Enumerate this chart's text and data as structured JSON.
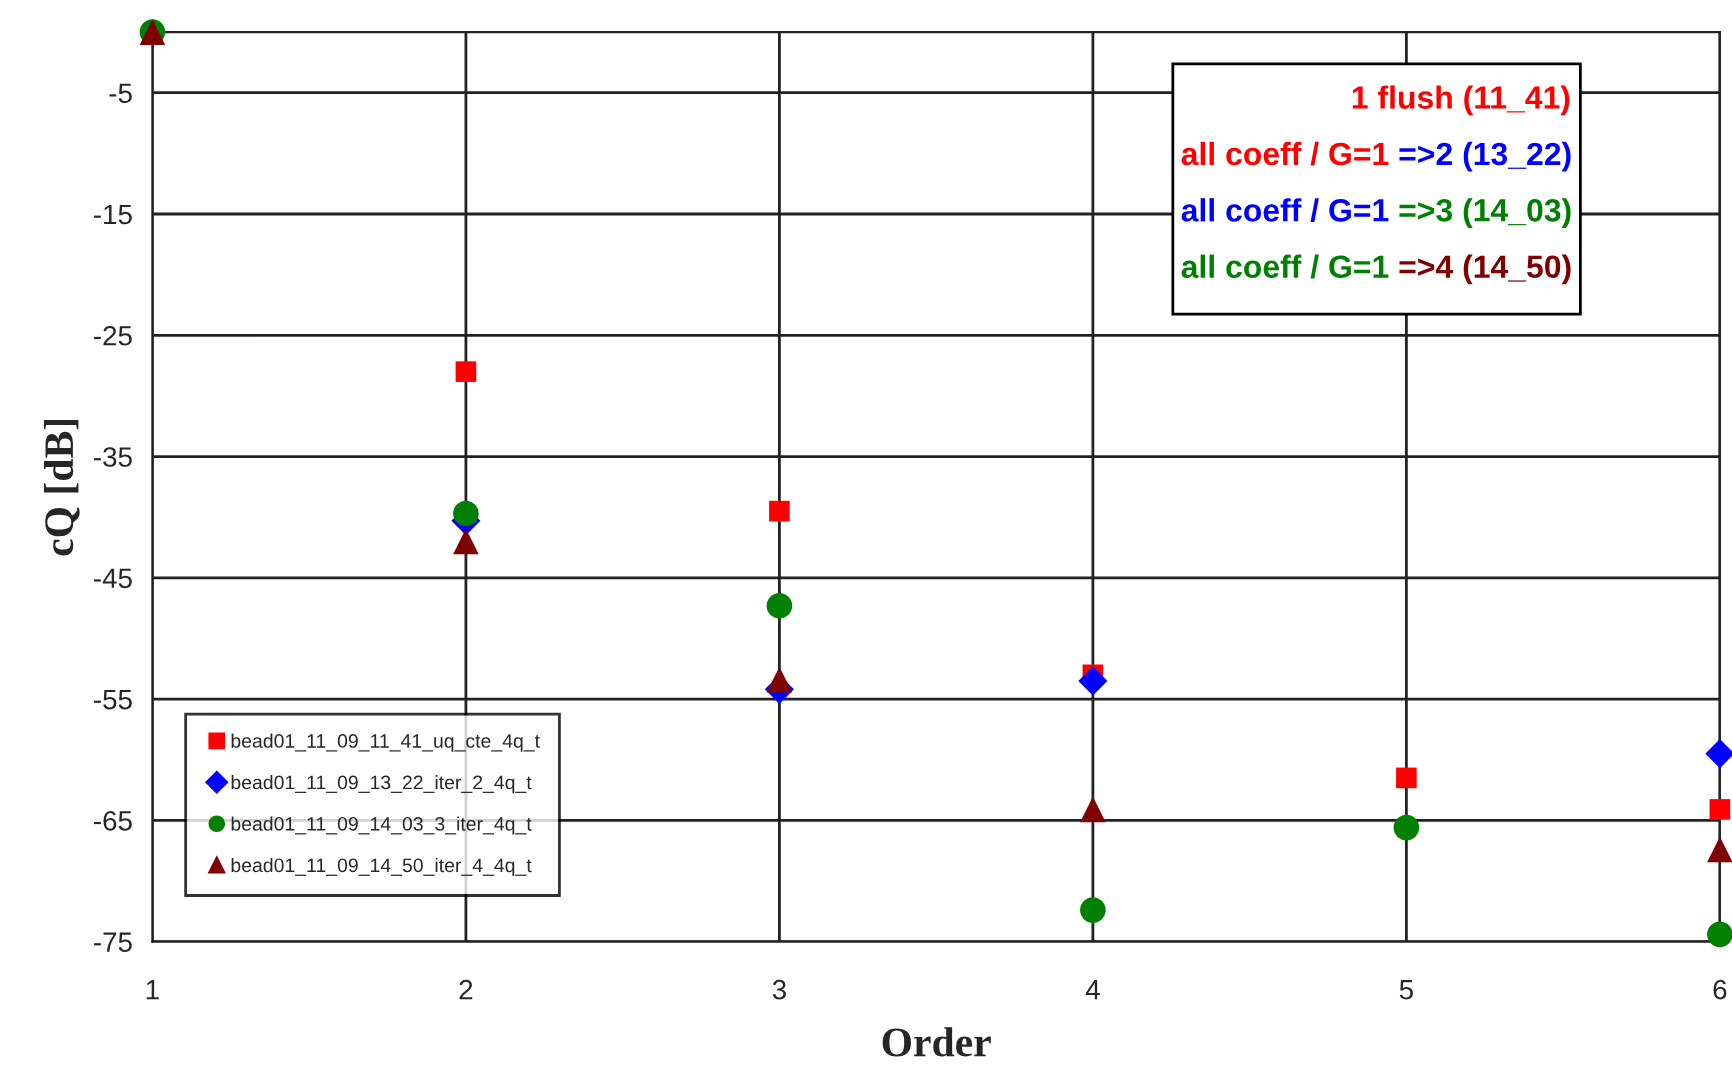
{
  "chart_data": {
    "type": "scatter",
    "xlabel": "Order",
    "ylabel": "cQ [dB]",
    "x": [
      1,
      2,
      3,
      4,
      5,
      6
    ],
    "series": [
      {
        "name": "bead01_11_09_11_41_uq_cte_4q_t",
        "color": "#ff0000",
        "marker": "square",
        "values": [
          null,
          -28,
          -39.5,
          -53,
          -61.5,
          -64.1
        ]
      },
      {
        "name": "bead01_11_09_13_22_iter_2_4q_t",
        "color": "#0000ff",
        "marker": "diamond",
        "values": [
          null,
          -40.3,
          -54.2,
          -53.5,
          null,
          -59.5
        ]
      },
      {
        "name": "bead01_11_09_14_03_3_iter_4q_t",
        "color": "#008000",
        "marker": "circle",
        "values": [
          0,
          -39.7,
          -47.3,
          -72.4,
          -65.6,
          -74.4
        ]
      },
      {
        "name": "bead01_11_09_14_50_iter_4_4q_t",
        "color": "#800000",
        "marker": "triangle",
        "values": [
          0,
          -42,
          -53.4,
          -64.1,
          null,
          -67.4
        ]
      }
    ],
    "annotations": [
      "1 flush (11_41)",
      "all coeff / G=1",
      "=>2 (13_22)",
      "all coeff / G=1",
      "=>3 (14_03)",
      "all coeff / G=1",
      "=>4 (14_50)"
    ],
    "xlim": [
      1,
      6
    ],
    "ylim": [
      -75,
      0
    ],
    "xticks": [
      1,
      2,
      3,
      4,
      5,
      6
    ],
    "yticks": [
      -5,
      -15,
      -25,
      -35,
      -45,
      -55,
      -65,
      -75
    ],
    "grid": true,
    "legend": "bottom left"
  }
}
